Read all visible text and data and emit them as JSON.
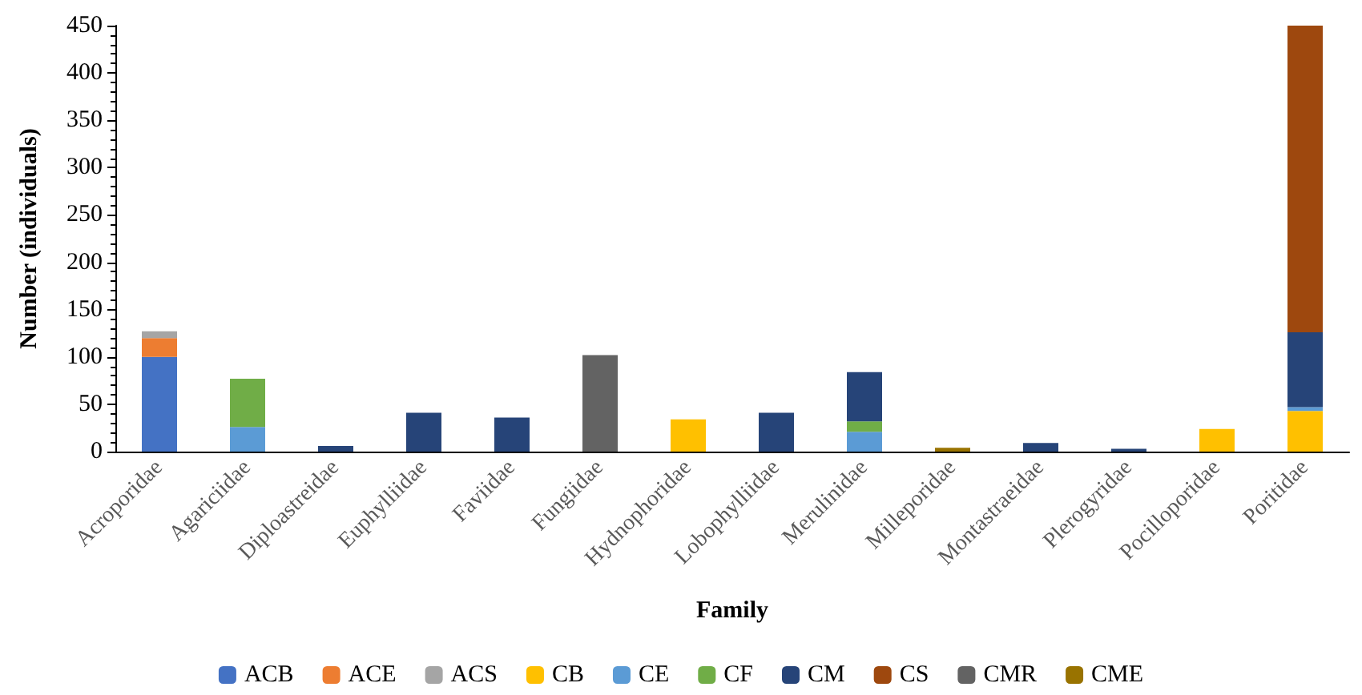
{
  "chart_data": {
    "type": "bar",
    "stacked": true,
    "xlabel": "Family",
    "ylabel": "Number (individuals)",
    "categories": [
      "Acroporidae",
      "Agariciidae",
      "Diploastreidae",
      "Euphylliidae",
      "Faviidae",
      "Fungiidae",
      "Hydnophoridae",
      "Lobophylliidae",
      "Merulinidae",
      "Milleporidae",
      "Montastraeidae",
      "Plerogyridae",
      "Pocilloporidae",
      "Poritidae"
    ],
    "series": [
      {
        "name": "ACB",
        "color": "#4472c4",
        "values": [
          100,
          null,
          null,
          null,
          null,
          null,
          null,
          null,
          null,
          null,
          null,
          null,
          null,
          null
        ]
      },
      {
        "name": "ACE",
        "color": "#ed7d31",
        "values": [
          20,
          null,
          null,
          null,
          null,
          null,
          null,
          null,
          null,
          null,
          null,
          null,
          null,
          null
        ]
      },
      {
        "name": "ACS",
        "color": "#a5a5a5",
        "values": [
          7,
          null,
          null,
          null,
          null,
          null,
          null,
          null,
          null,
          null,
          null,
          null,
          null,
          null
        ]
      },
      {
        "name": "CB",
        "color": "#ffc000",
        "values": [
          null,
          null,
          null,
          null,
          null,
          null,
          34,
          null,
          null,
          null,
          null,
          null,
          24,
          43
        ]
      },
      {
        "name": "CE",
        "color": "#5b9bd5",
        "values": [
          null,
          26,
          null,
          null,
          null,
          null,
          null,
          null,
          21,
          null,
          null,
          null,
          null,
          4
        ]
      },
      {
        "name": "CF",
        "color": "#70ad47",
        "values": [
          null,
          51,
          null,
          null,
          null,
          null,
          null,
          null,
          11,
          null,
          null,
          null,
          null,
          null
        ]
      },
      {
        "name": "CM",
        "color": "#264478",
        "values": [
          null,
          null,
          6,
          41,
          36,
          null,
          null,
          41,
          52,
          null,
          9,
          3,
          null,
          79
        ]
      },
      {
        "name": "CS",
        "color": "#9e480e",
        "values": [
          null,
          null,
          null,
          null,
          null,
          null,
          null,
          null,
          null,
          null,
          null,
          null,
          null,
          324
        ]
      },
      {
        "name": "CMR",
        "color": "#636363",
        "values": [
          null,
          null,
          null,
          null,
          null,
          102,
          null,
          null,
          null,
          null,
          null,
          null,
          null,
          null
        ]
      },
      {
        "name": "CME",
        "color": "#997300",
        "values": [
          null,
          null,
          null,
          null,
          null,
          null,
          null,
          null,
          null,
          4,
          null,
          null,
          null,
          null
        ]
      }
    ],
    "ylim": [
      0,
      450
    ],
    "yticks": [
      0,
      50,
      100,
      150,
      200,
      250,
      300,
      350,
      400,
      450
    ],
    "grid": false,
    "legend": "bottom"
  }
}
